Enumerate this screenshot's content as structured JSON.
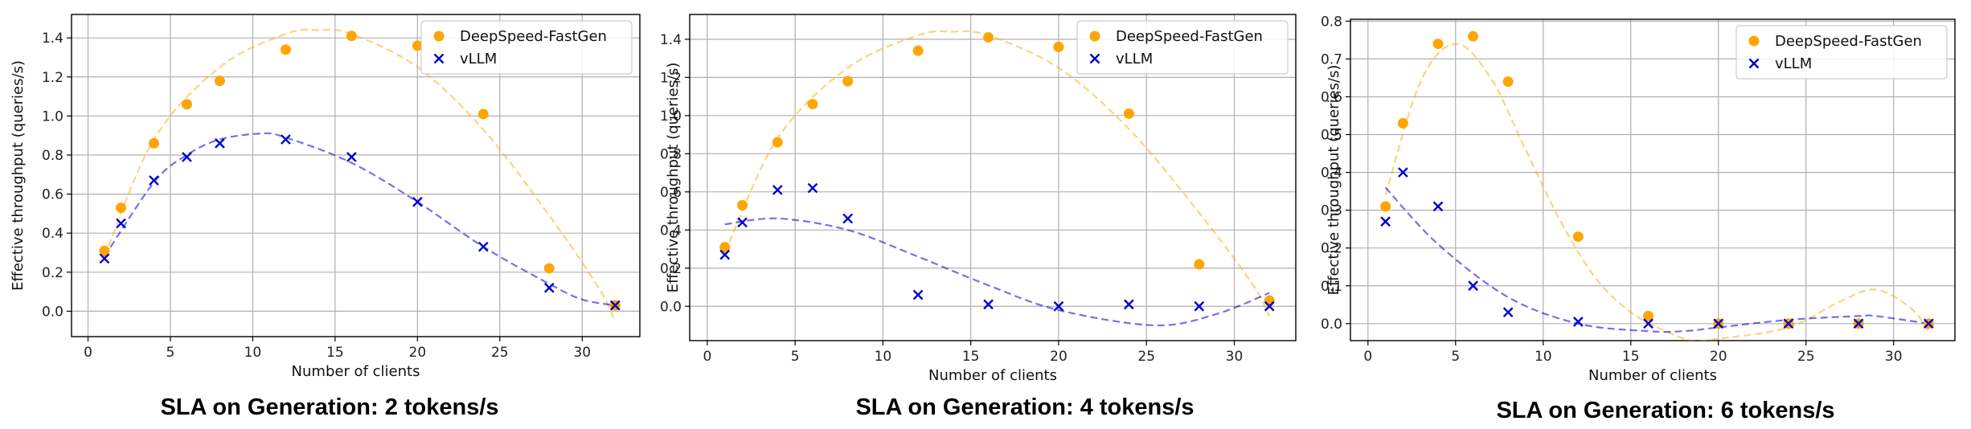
{
  "chart_data": [
    {
      "type": "scatter",
      "title": "SLA on  Generation: 2 tokens/s",
      "xlabel": "Number of clients",
      "ylabel": "Effective throughput (queries/s)",
      "xlim": [
        -1,
        33.5
      ],
      "ylim": [
        -0.13,
        1.52
      ],
      "xticks": [
        0,
        5,
        10,
        15,
        20,
        25,
        30
      ],
      "yticks": [
        0.0,
        0.2,
        0.4,
        0.6,
        0.8,
        1.0,
        1.2,
        1.4
      ],
      "ytick_decimals": 1,
      "grid": true,
      "legend": "top-right",
      "series": [
        {
          "name": "DeepSpeed-FastGen",
          "marker": "circle",
          "color": "#ffa500",
          "x": [
            1,
            2,
            4,
            6,
            8,
            12,
            16,
            20,
            24,
            28,
            32
          ],
          "y": [
            0.31,
            0.53,
            0.86,
            1.06,
            1.18,
            1.34,
            1.41,
            1.36,
            1.01,
            0.22,
            0.03
          ],
          "fit": {
            "x": [
              1,
              4,
              8,
              12,
              14,
              16,
              20,
              24,
              28,
              31,
              32
            ],
            "y": [
              0.28,
              0.88,
              1.25,
              1.42,
              1.44,
              1.42,
              1.25,
              0.93,
              0.49,
              0.12,
              -0.05
            ]
          }
        },
        {
          "name": "vLLM",
          "marker": "x",
          "color": "#0000cc",
          "x": [
            1,
            2,
            4,
            6,
            8,
            12,
            16,
            20,
            24,
            28,
            32
          ],
          "y": [
            0.27,
            0.45,
            0.67,
            0.79,
            0.86,
            0.88,
            0.79,
            0.56,
            0.33,
            0.12,
            0.03
          ],
          "fit": {
            "x": [
              1,
              4,
              6,
              8,
              10.5,
              12,
              16,
              20,
              24,
              28,
              30,
              32
            ],
            "y": [
              0.28,
              0.66,
              0.8,
              0.88,
              0.91,
              0.89,
              0.76,
              0.56,
              0.33,
              0.14,
              0.06,
              0.03
            ]
          }
        }
      ]
    },
    {
      "type": "scatter",
      "title": "SLA on  Generation: 4 tokens/s",
      "xlabel": "Number of clients",
      "ylabel": "Effective throughput (queries/s)",
      "xlim": [
        -1,
        33.5
      ],
      "ylim": [
        -0.18,
        1.53
      ],
      "xticks": [
        0,
        5,
        10,
        15,
        20,
        25,
        30
      ],
      "yticks": [
        0.0,
        0.2,
        0.4,
        0.6,
        0.8,
        1.0,
        1.2,
        1.4
      ],
      "ytick_decimals": 1,
      "grid": true,
      "legend": "top-right",
      "series": [
        {
          "name": "DeepSpeed-FastGen",
          "marker": "circle",
          "color": "#ffa500",
          "x": [
            1,
            2,
            4,
            6,
            8,
            12,
            16,
            20,
            24,
            28,
            32
          ],
          "y": [
            0.31,
            0.53,
            0.86,
            1.06,
            1.18,
            1.34,
            1.41,
            1.36,
            1.01,
            0.22,
            0.03
          ],
          "fit": {
            "x": [
              1,
              4,
              8,
              12,
              14,
              16,
              20,
              24,
              28,
              31,
              32
            ],
            "y": [
              0.28,
              0.88,
              1.25,
              1.42,
              1.44,
              1.42,
              1.25,
              0.93,
              0.49,
              0.12,
              -0.05
            ]
          }
        },
        {
          "name": "vLLM",
          "marker": "x",
          "color": "#0000cc",
          "x": [
            1,
            2,
            4,
            6,
            8,
            12,
            16,
            20,
            24,
            28,
            32
          ],
          "y": [
            0.27,
            0.44,
            0.61,
            0.62,
            0.46,
            0.06,
            0.01,
            0.0,
            0.01,
            0.0,
            0.0
          ],
          "fit": {
            "x": [
              1,
              4,
              8,
              12,
              16,
              20,
              25.5,
              29,
              32
            ],
            "y": [
              0.43,
              0.46,
              0.4,
              0.26,
              0.11,
              -0.02,
              -0.1,
              -0.04,
              0.07
            ]
          }
        }
      ]
    },
    {
      "type": "scatter",
      "title": "SLA on  Generation: 6 tokens/s",
      "xlabel": "Number of clients",
      "ylabel": "Effective throughput (queries/s)",
      "xlim": [
        -1,
        33.5
      ],
      "ylim": [
        -0.045,
        0.805
      ],
      "xticks": [
        0,
        5,
        10,
        15,
        20,
        25,
        30
      ],
      "yticks": [
        0.0,
        0.1,
        0.2,
        0.3,
        0.4,
        0.5,
        0.6,
        0.7,
        0.8
      ],
      "ytick_decimals": 1,
      "grid": true,
      "legend": "top-right",
      "series": [
        {
          "name": "DeepSpeed-FastGen",
          "marker": "circle",
          "color": "#ffa500",
          "x": [
            1,
            2,
            4,
            6,
            8,
            12,
            16,
            20,
            24,
            28,
            32
          ],
          "y": [
            0.31,
            0.53,
            0.74,
            0.76,
            0.64,
            0.23,
            0.02,
            0.0,
            0.0,
            0.0,
            0.0
          ],
          "fit": {
            "x": [
              1,
              3,
              5,
              7,
              9,
              11,
              13,
              15,
              17,
              18.5,
              20,
              24,
              27,
              29,
              31,
              32
            ],
            "y": [
              0.34,
              0.64,
              0.74,
              0.65,
              0.46,
              0.27,
              0.12,
              0.03,
              -0.02,
              -0.045,
              -0.04,
              -0.01,
              0.06,
              0.09,
              0.04,
              -0.02
            ]
          }
        },
        {
          "name": "vLLM",
          "marker": "x",
          "color": "#0000cc",
          "x": [
            1,
            2,
            4,
            6,
            8,
            12,
            16,
            20,
            24,
            28,
            32
          ],
          "y": [
            0.27,
            0.4,
            0.31,
            0.1,
            0.03,
            0.005,
            0.0,
            0.0,
            0.0,
            0.0,
            0.0
          ],
          "fit": {
            "x": [
              1,
              4,
              8,
              12,
              16,
              18,
              20,
              24,
              28,
              29,
              32
            ],
            "y": [
              0.36,
              0.21,
              0.07,
              0.0,
              -0.02,
              -0.02,
              -0.01,
              0.01,
              0.02,
              0.02,
              0.0
            ]
          }
        }
      ]
    }
  ]
}
